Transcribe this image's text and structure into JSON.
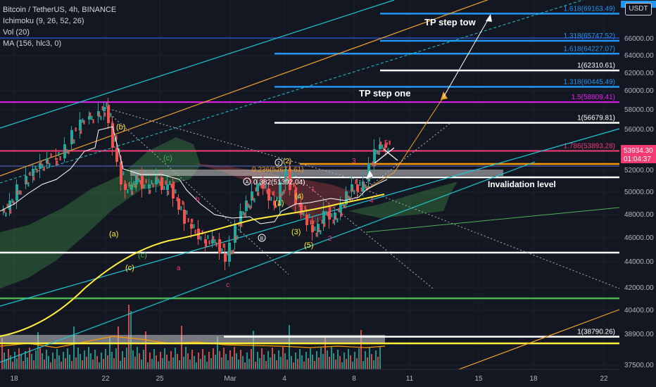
{
  "legend": {
    "symbol": "Bitcoin / TetherUS, 4h, BINANCE",
    "ichimoku": "Ichimoku (9, 26, 52, 26)",
    "vol": "Vol (20)",
    "ma": "MA (156, hlc3, 0)"
  },
  "currency_button": "USDT",
  "colors": {
    "background": "#131722",
    "bull": "#26a69a",
    "bear": "#ef5350",
    "cyan": "#1fc7d4",
    "blue": "#2196f3",
    "yellow": "#ffeb3b",
    "orange": "#ff9800",
    "magenta": "#e91ef0",
    "pink": "#f23a73",
    "green": "#4caf50",
    "white": "#ffffff"
  },
  "chart_data": {
    "type": "candlestick",
    "xlabels": [
      "18",
      "22",
      "25",
      "Mar",
      "4",
      "8",
      "11",
      "15",
      "18",
      "22"
    ],
    "ylim": [
      36400,
      72000
    ],
    "yticks": [
      "66000.00",
      "64000.00",
      "62000.00",
      "60000.00",
      "58000.00",
      "56000.00",
      "54000.00",
      "52000.00",
      "50000.00",
      "48000.00",
      "46000.00",
      "44000.00",
      "42000.00",
      "40400.00",
      "38900.00",
      "37500.00"
    ],
    "price_current": "53934.30",
    "countdown": "01:04:37",
    "levels": [
      {
        "label": "1.618(69163.49)",
        "value": 69163.49,
        "color": "#2196f3"
      },
      {
        "label": "1.318(65747.52)",
        "value": 65747.52,
        "color": "#2196f3"
      },
      {
        "label": "1.618(64227.07)",
        "value": 64227.07,
        "color": "#2196f3"
      },
      {
        "label": "1(62310.61)",
        "value": 62310.61,
        "color": "#ffffff"
      },
      {
        "label": "1.318(60445.49)",
        "value": 60445.49,
        "color": "#2196f3"
      },
      {
        "label": "1.5(58809.41)",
        "value": 58809.41,
        "color": "#e91ef0"
      },
      {
        "label": "1(56679.81)",
        "value": 56679.81,
        "color": "#ffffff"
      },
      {
        "label": "1.786(53893.28)",
        "value": 53893.28,
        "color": "#f23a73"
      },
      {
        "label": "1(38790.26)",
        "value": 38790.26,
        "color": "#ffffff"
      }
    ],
    "annotations": {
      "tp_two": "TP step tow",
      "tp_one": "TP step one",
      "invalidation": "Invalidation level",
      "fib_0236": "0.236(52674.61)",
      "fib_0382": "0.382(51392.04)",
      "circle_a": "A",
      "circle_b": "B",
      "circle_2": "2",
      "wave_labels": [
        "(a)",
        "(b)",
        "(c)",
        "(a)",
        "(c)",
        "(c)",
        "a",
        "b",
        "c",
        "(1)",
        "(2)",
        "(3)",
        "(4)",
        "(5)",
        "1",
        "2",
        "3",
        "4",
        "5"
      ]
    }
  }
}
